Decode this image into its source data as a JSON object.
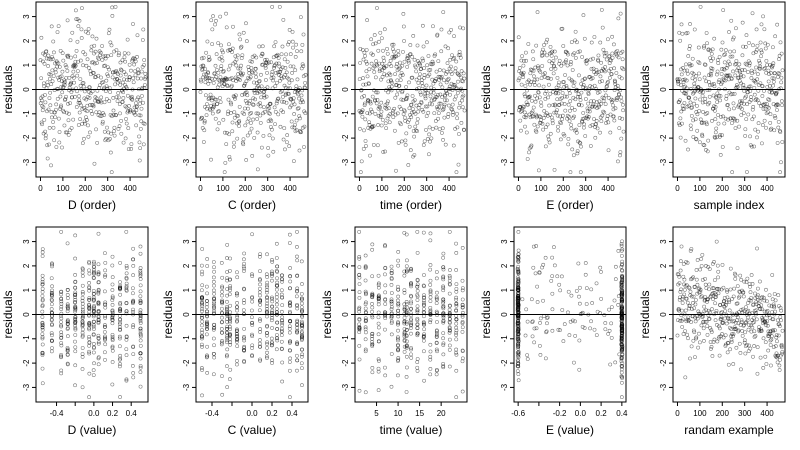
{
  "chart_data": [
    {
      "type": "scatter",
      "xlabel": "D (order)",
      "ylabel": "residuals",
      "xlim": [
        -20,
        480
      ],
      "ylim": [
        -3.6,
        3.6
      ],
      "xticks": [
        0,
        100,
        200,
        300,
        400
      ],
      "yticks": [
        -3,
        -2,
        -1,
        0,
        1,
        2,
        3
      ],
      "reference_line_y": 0,
      "n_points": 470,
      "x_kind": "index",
      "y_summary": {
        "min": -3.4,
        "max": 3.4,
        "center": 0
      }
    },
    {
      "type": "scatter",
      "xlabel": "C (order)",
      "ylabel": "residuals",
      "xlim": [
        -20,
        480
      ],
      "ylim": [
        -3.6,
        3.6
      ],
      "xticks": [
        0,
        100,
        200,
        300,
        400
      ],
      "yticks": [
        -3,
        -2,
        -1,
        0,
        1,
        2,
        3
      ],
      "reference_line_y": 0,
      "n_points": 470,
      "x_kind": "index",
      "y_summary": {
        "min": -3.4,
        "max": 3.4,
        "center": 0
      }
    },
    {
      "type": "scatter",
      "xlabel": "time (order)",
      "ylabel": "residuals",
      "xlim": [
        -20,
        480
      ],
      "ylim": [
        -3.6,
        3.6
      ],
      "xticks": [
        0,
        100,
        200,
        300,
        400
      ],
      "yticks": [
        -3,
        -2,
        -1,
        0,
        1,
        2,
        3
      ],
      "reference_line_y": 0,
      "n_points": 470,
      "x_kind": "index",
      "y_summary": {
        "min": -3.4,
        "max": 3.4,
        "center": 0
      }
    },
    {
      "type": "scatter",
      "xlabel": "E (order)",
      "ylabel": "residuals",
      "xlim": [
        -20,
        480
      ],
      "ylim": [
        -3.6,
        3.6
      ],
      "xticks": [
        0,
        100,
        200,
        300,
        400
      ],
      "yticks": [
        -3,
        -2,
        -1,
        0,
        1,
        2,
        3
      ],
      "reference_line_y": 0,
      "n_points": 470,
      "x_kind": "index",
      "y_summary": {
        "min": -3.4,
        "max": 3.4,
        "center": 0
      }
    },
    {
      "type": "scatter",
      "xlabel": "sample index",
      "ylabel": "residuals",
      "xlim": [
        -20,
        480
      ],
      "ylim": [
        -3.6,
        3.6
      ],
      "xticks": [
        0,
        100,
        200,
        300,
        400
      ],
      "yticks": [
        -3,
        -2,
        -1,
        0,
        1,
        2,
        3
      ],
      "reference_line_y": 0,
      "n_points": 470,
      "x_kind": "index",
      "y_summary": {
        "min": -3.4,
        "max": 3.4,
        "center": 0
      }
    },
    {
      "type": "scatter",
      "xlabel": "D (value)",
      "ylabel": "residuals",
      "xlim": [
        -0.62,
        0.58
      ],
      "ylim": [
        -3.6,
        3.6
      ],
      "xticks": [
        -0.4,
        -0.2,
        0.0,
        0.2,
        0.4
      ],
      "xtick_labels": [
        "-0.4",
        "",
        "0.0",
        "0.2",
        "0.4"
      ],
      "yticks": [
        -3,
        -2,
        -1,
        0,
        1,
        2,
        3
      ],
      "reference_line_y": 0,
      "n_points": 470,
      "x_kind": "discrete",
      "x_levels": [
        -0.55,
        -0.45,
        -0.35,
        -0.28,
        -0.2,
        -0.12,
        -0.05,
        0.0,
        0.05,
        0.12,
        0.2,
        0.28,
        0.35,
        0.42,
        0.5
      ],
      "y_summary": {
        "min": -3.4,
        "max": 3.4,
        "center": 0
      }
    },
    {
      "type": "scatter",
      "xlabel": "C (value)",
      "ylabel": "residuals",
      "xlim": [
        -0.56,
        0.56
      ],
      "ylim": [
        -3.6,
        3.6
      ],
      "xticks": [
        -0.4,
        -0.2,
        0.0,
        0.2,
        0.4
      ],
      "xtick_labels": [
        "-0.4",
        "",
        "0.0",
        "0.2",
        "0.4"
      ],
      "yticks": [
        -3,
        -2,
        -1,
        0,
        1,
        2,
        3
      ],
      "reference_line_y": 0,
      "n_points": 470,
      "x_kind": "discrete",
      "x_levels": [
        -0.5,
        -0.45,
        -0.38,
        -0.3,
        -0.25,
        -0.22,
        -0.15,
        -0.08,
        0.0,
        0.08,
        0.15,
        0.2,
        0.25,
        0.3,
        0.38,
        0.45,
        0.5
      ],
      "y_summary": {
        "min": -3.4,
        "max": 3.4,
        "center": 0
      }
    },
    {
      "type": "scatter",
      "xlabel": "time (value)",
      "ylabel": "residuals",
      "xlim": [
        0,
        26
      ],
      "ylim": [
        -3.6,
        3.6
      ],
      "xticks": [
        5,
        10,
        15,
        20
      ],
      "yticks": [
        -3,
        -2,
        -1,
        0,
        1,
        2,
        3
      ],
      "reference_line_y": 0,
      "n_points": 470,
      "x_kind": "discrete",
      "x_levels": [
        1,
        2.5,
        4,
        5.5,
        7,
        8.5,
        10,
        11.5,
        12,
        13,
        14.5,
        16,
        17.5,
        19,
        20.5,
        22,
        23.5,
        25
      ],
      "y_summary": {
        "min": -3.4,
        "max": 3.4,
        "center": 0
      }
    },
    {
      "type": "scatter",
      "xlabel": "E (value)",
      "ylabel": "residuals",
      "xlim": [
        -0.64,
        0.44
      ],
      "ylim": [
        -3.6,
        3.6
      ],
      "xticks": [
        -0.6,
        -0.4,
        -0.2,
        0.0,
        0.2,
        0.4
      ],
      "xtick_labels": [
        "-0.6",
        "",
        "-0.2",
        "0.0",
        "0.2",
        "0.4"
      ],
      "yticks": [
        -3,
        -2,
        -1,
        0,
        1,
        2,
        3
      ],
      "reference_line_y": 0,
      "n_points": 470,
      "x_kind": "bimodal",
      "x_modes": [
        -0.6,
        0.4
      ],
      "y_summary": {
        "min": -3.4,
        "max": 3.4,
        "center": 0
      }
    },
    {
      "type": "scatter",
      "xlabel": "randam example",
      "ylabel": "residuals",
      "xlim": [
        -20,
        480
      ],
      "ylim": [
        -3.6,
        3.6
      ],
      "xticks": [
        0,
        100,
        200,
        300,
        400
      ],
      "yticks": [
        -3,
        -2,
        -1,
        0,
        1,
        2,
        3
      ],
      "reference_line_y": 0,
      "n_points": 470,
      "x_kind": "index",
      "trend": "decreasing",
      "y_summary": {
        "min": -3.0,
        "max": 3.0,
        "center": 0
      }
    }
  ]
}
